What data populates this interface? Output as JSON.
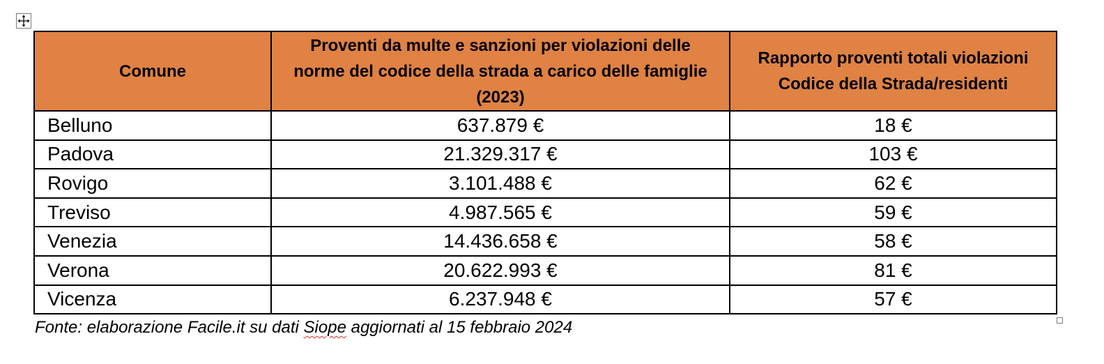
{
  "table": {
    "headers": [
      "Comune",
      "Proventi da multe e sanzioni per violazioni delle norme del codice della strada a carico delle famiglie (2023)",
      "Rapporto proventi totali violazioni Codice della Strada/residenti"
    ],
    "rows": [
      {
        "comune": "Belluno",
        "proventi": "637.879 €",
        "rapporto": "18 €"
      },
      {
        "comune": "Padova",
        "proventi": "21.329.317 €",
        "rapporto": "103 €"
      },
      {
        "comune": "Rovigo",
        "proventi": "3.101.488 €",
        "rapporto": "62 €"
      },
      {
        "comune": "Treviso",
        "proventi": "4.987.565 €",
        "rapporto": "59 €"
      },
      {
        "comune": "Venezia",
        "proventi": "14.436.658 €",
        "rapporto": "58 €"
      },
      {
        "comune": "Verona",
        "proventi": "20.622.993 €",
        "rapporto": "81 €"
      },
      {
        "comune": "Vicenza",
        "proventi": "6.237.948 €",
        "rapporto": "57 €"
      }
    ]
  },
  "source_note": {
    "before": "Fonte: elaborazione Facile.it su dati ",
    "flagged_word": "Siope",
    "after": " aggiornati al 15 febbraio 2024"
  },
  "icons": {
    "move_handle": "move-arrows-icon",
    "resize_handle": "resize-handle-icon"
  },
  "colors": {
    "header_background": "#df8243",
    "spellcheck_underline": "#d92b2b"
  }
}
